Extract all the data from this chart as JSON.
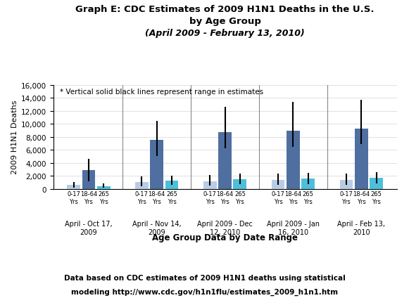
{
  "title_line1": "Graph E: CDC Estimates of 2009 H1N1 Deaths in the U.S.",
  "title_line2": "by Age Group",
  "title_line3": "(April 2009 - February 13, 2010)",
  "subtitle": "* Vertical solid black lines represent range in estimates",
  "ylabel": "2009 H1N1 Deaths",
  "xlabel": "Age Group Data by Date Range",
  "footnote_line1": "Data based on CDC estimates of 2009 H1N1 deaths using statistical",
  "footnote_line2": "modeling http://www.cdc.gov/h1n1flu/estimates_2009_h1n1.htm",
  "groups": [
    "April - Oct 17,\n2009",
    "April - Nov 14,\n2009",
    "April 2009 - Dec\n12, 2010",
    "April 2009 - Jan\n16, 2010",
    "April - Feb 13,\n2010"
  ],
  "age_labels": [
    "0-17\nYrs",
    "18-64\nYrs",
    "265\nYrs"
  ],
  "bar_values": [
    [
      600,
      2900,
      440
    ],
    [
      1100,
      7500,
      1300
    ],
    [
      1200,
      8700,
      1500
    ],
    [
      1400,
      8900,
      1600
    ],
    [
      1400,
      9300,
      1700
    ]
  ],
  "error_low": [
    [
      200,
      1200,
      150
    ],
    [
      400,
      5000,
      600
    ],
    [
      500,
      6200,
      700
    ],
    [
      600,
      6500,
      750
    ],
    [
      650,
      6900,
      800
    ]
  ],
  "error_high": [
    [
      1100,
      4600,
      800
    ],
    [
      1900,
      10500,
      2000
    ],
    [
      2100,
      12600,
      2300
    ],
    [
      2300,
      13400,
      2500
    ],
    [
      2400,
      13700,
      2600
    ]
  ],
  "bar_colors": [
    "#b8cce4",
    "#4f6fa0",
    "#4dbfdb"
  ],
  "ylim": [
    0,
    16000
  ],
  "yticks": [
    0,
    2000,
    4000,
    6000,
    8000,
    10000,
    12000,
    14000,
    16000
  ]
}
